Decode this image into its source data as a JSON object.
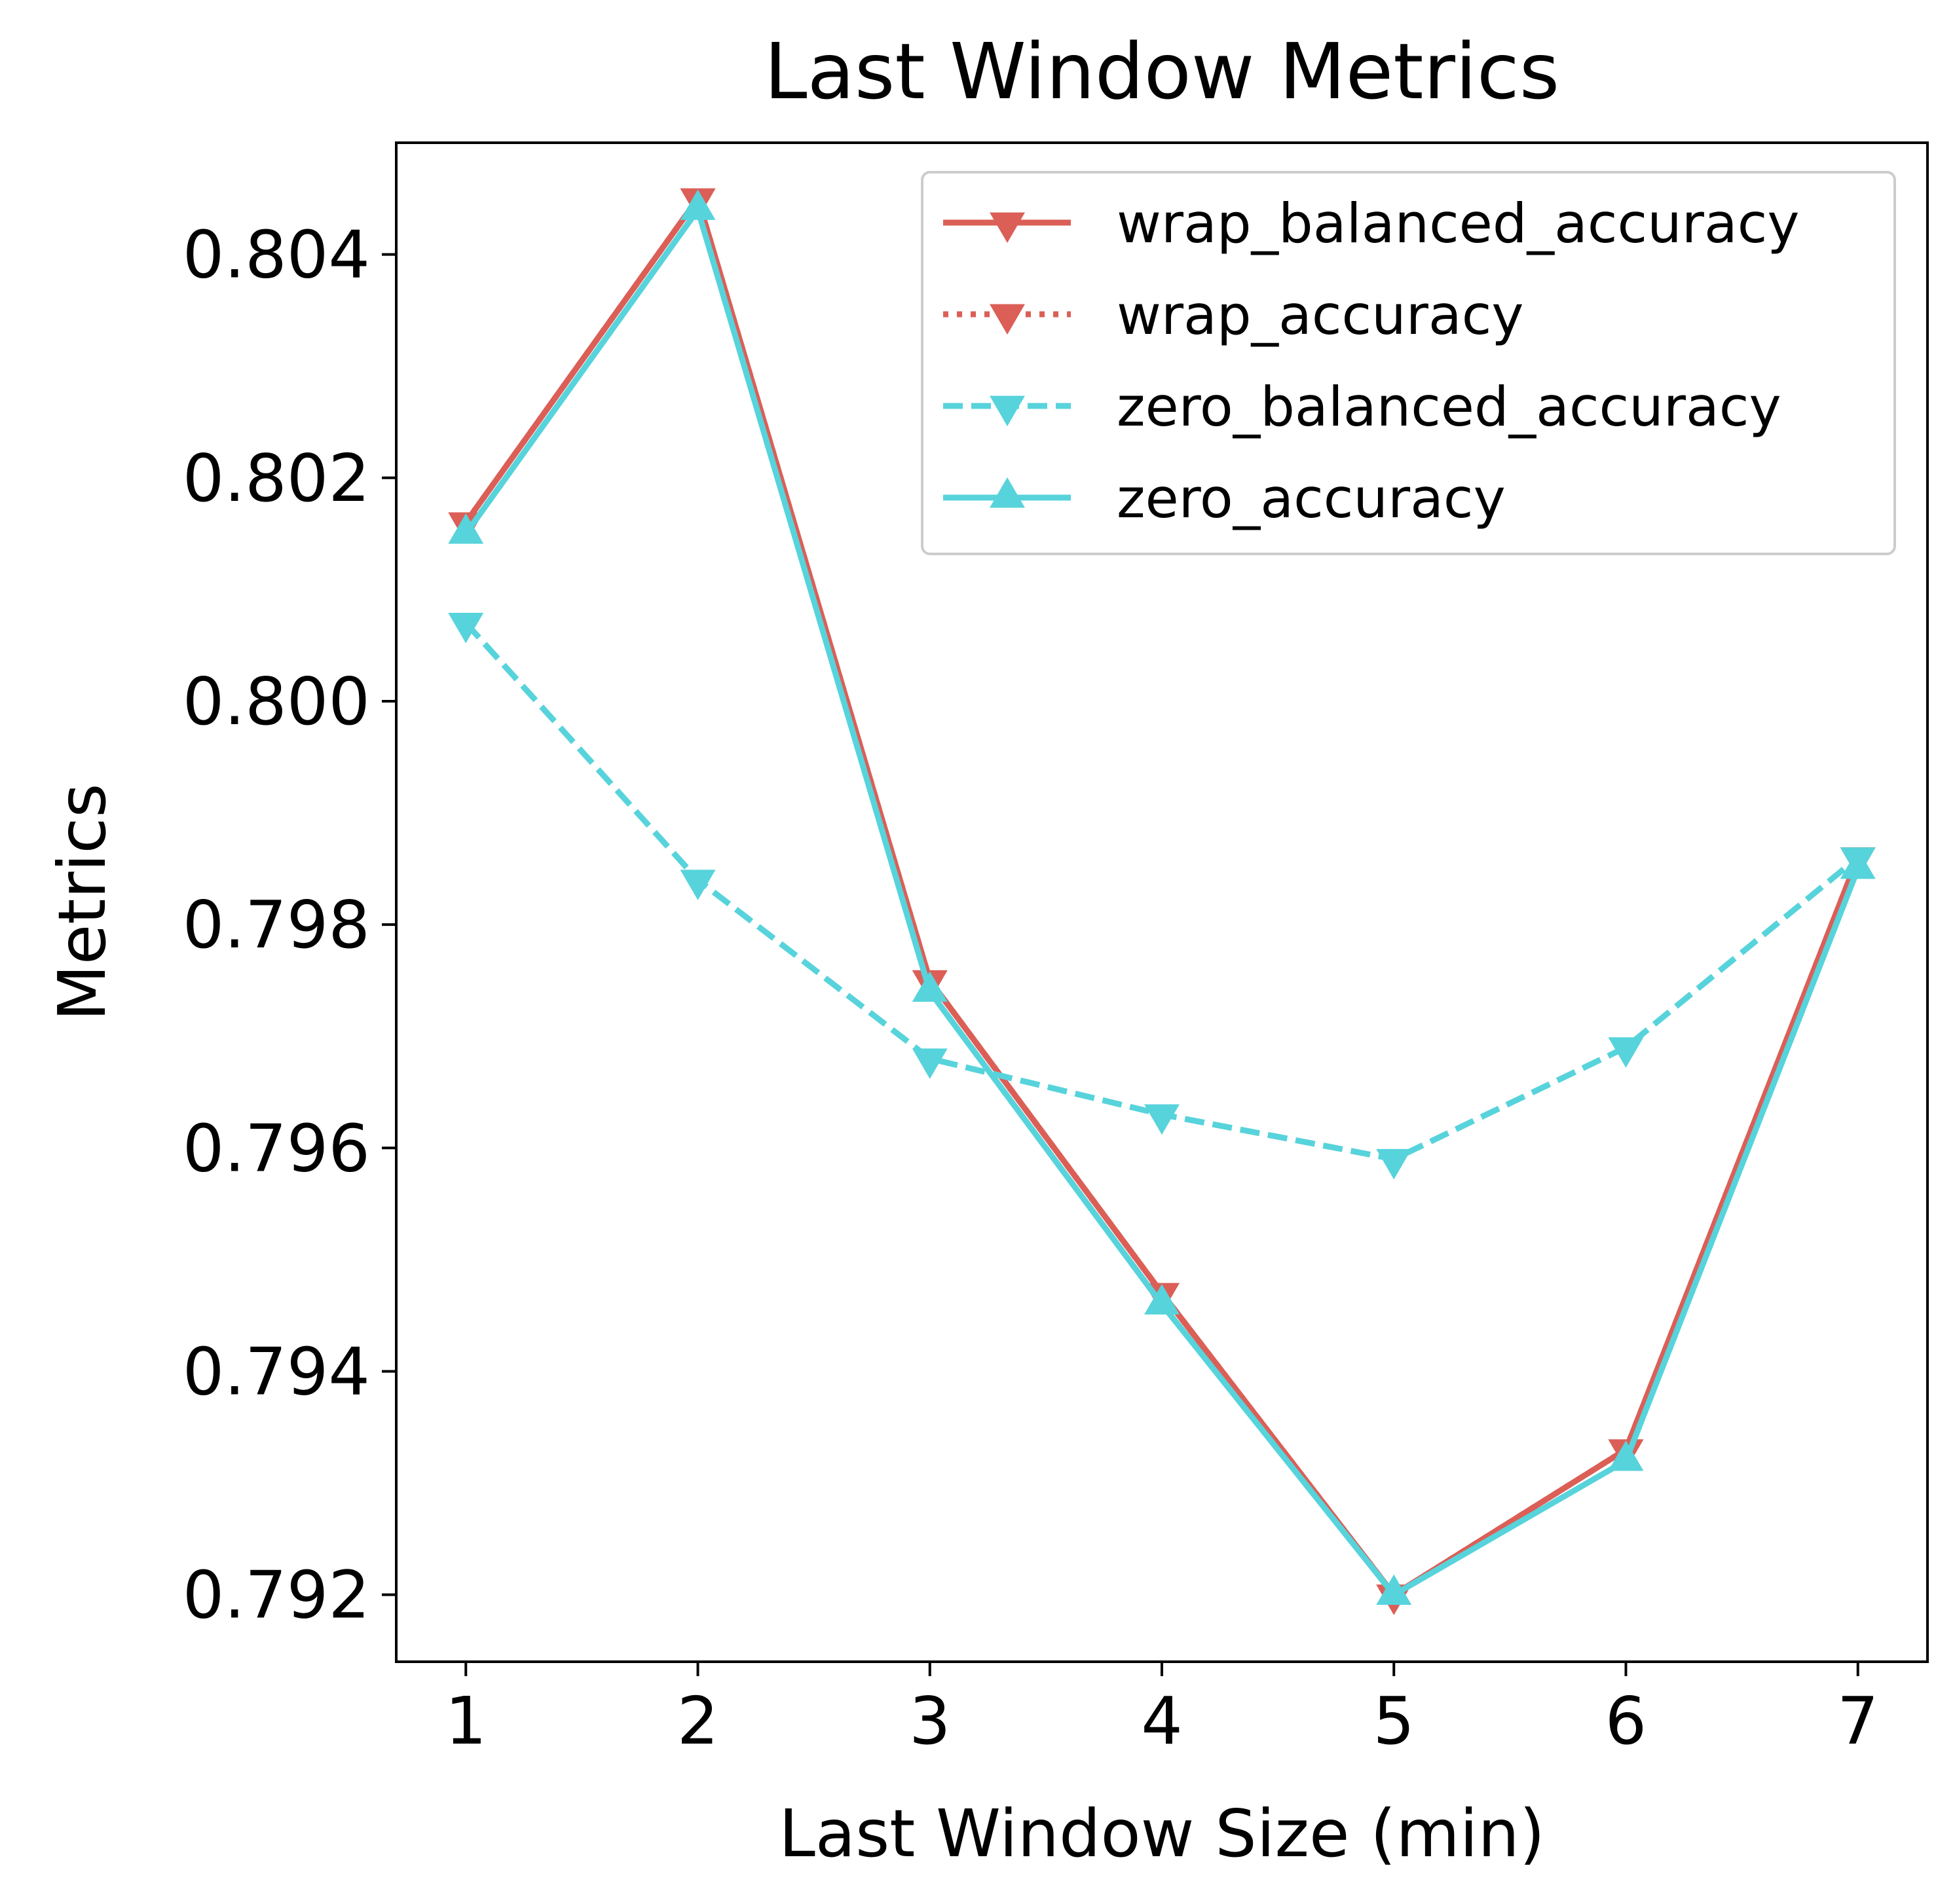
{
  "chart_data": {
    "type": "line",
    "title": "Last Window Metrics",
    "xlabel": "Last Window Size (min)",
    "ylabel": "Metrics",
    "x": [
      1,
      2,
      3,
      4,
      5,
      6,
      7
    ],
    "xlim": [
      0.7,
      7.3
    ],
    "ylim": [
      0.7914,
      0.805
    ],
    "xticks": [
      "1",
      "2",
      "3",
      "4",
      "5",
      "6",
      "7"
    ],
    "yticks": [
      "0.792",
      "0.794",
      "0.796",
      "0.798",
      "0.800",
      "0.802",
      "0.804"
    ],
    "grid": false,
    "legend_position": "top-right",
    "series": [
      {
        "name": "wrap_balanced_accuracy",
        "values": [
          0.8016,
          0.8045,
          0.7975,
          0.7947,
          0.792,
          0.7933,
          0.7986
        ],
        "color": "#db5f57",
        "line": "solid",
        "marker": "triangle-down"
      },
      {
        "name": "wrap_accuracy",
        "values": [
          0.8016,
          0.8045,
          0.7975,
          0.7947,
          0.792,
          0.7933,
          0.7986
        ],
        "color": "#db5f57",
        "line": "dotted",
        "marker": "triangle-down"
      },
      {
        "name": "zero_balanced_accuracy",
        "values": [
          0.8007,
          0.7984,
          0.7968,
          0.7963,
          0.7959,
          0.7969,
          0.7986
        ],
        "color": "#57d3db",
        "line": "dashed",
        "marker": "triangle-down"
      },
      {
        "name": "zero_accuracy",
        "values": [
          0.8015,
          0.8044,
          0.7974,
          0.7946,
          0.792,
          0.7932,
          0.7985
        ],
        "color": "#57d3db",
        "line": "solid",
        "marker": "triangle-up"
      }
    ]
  }
}
